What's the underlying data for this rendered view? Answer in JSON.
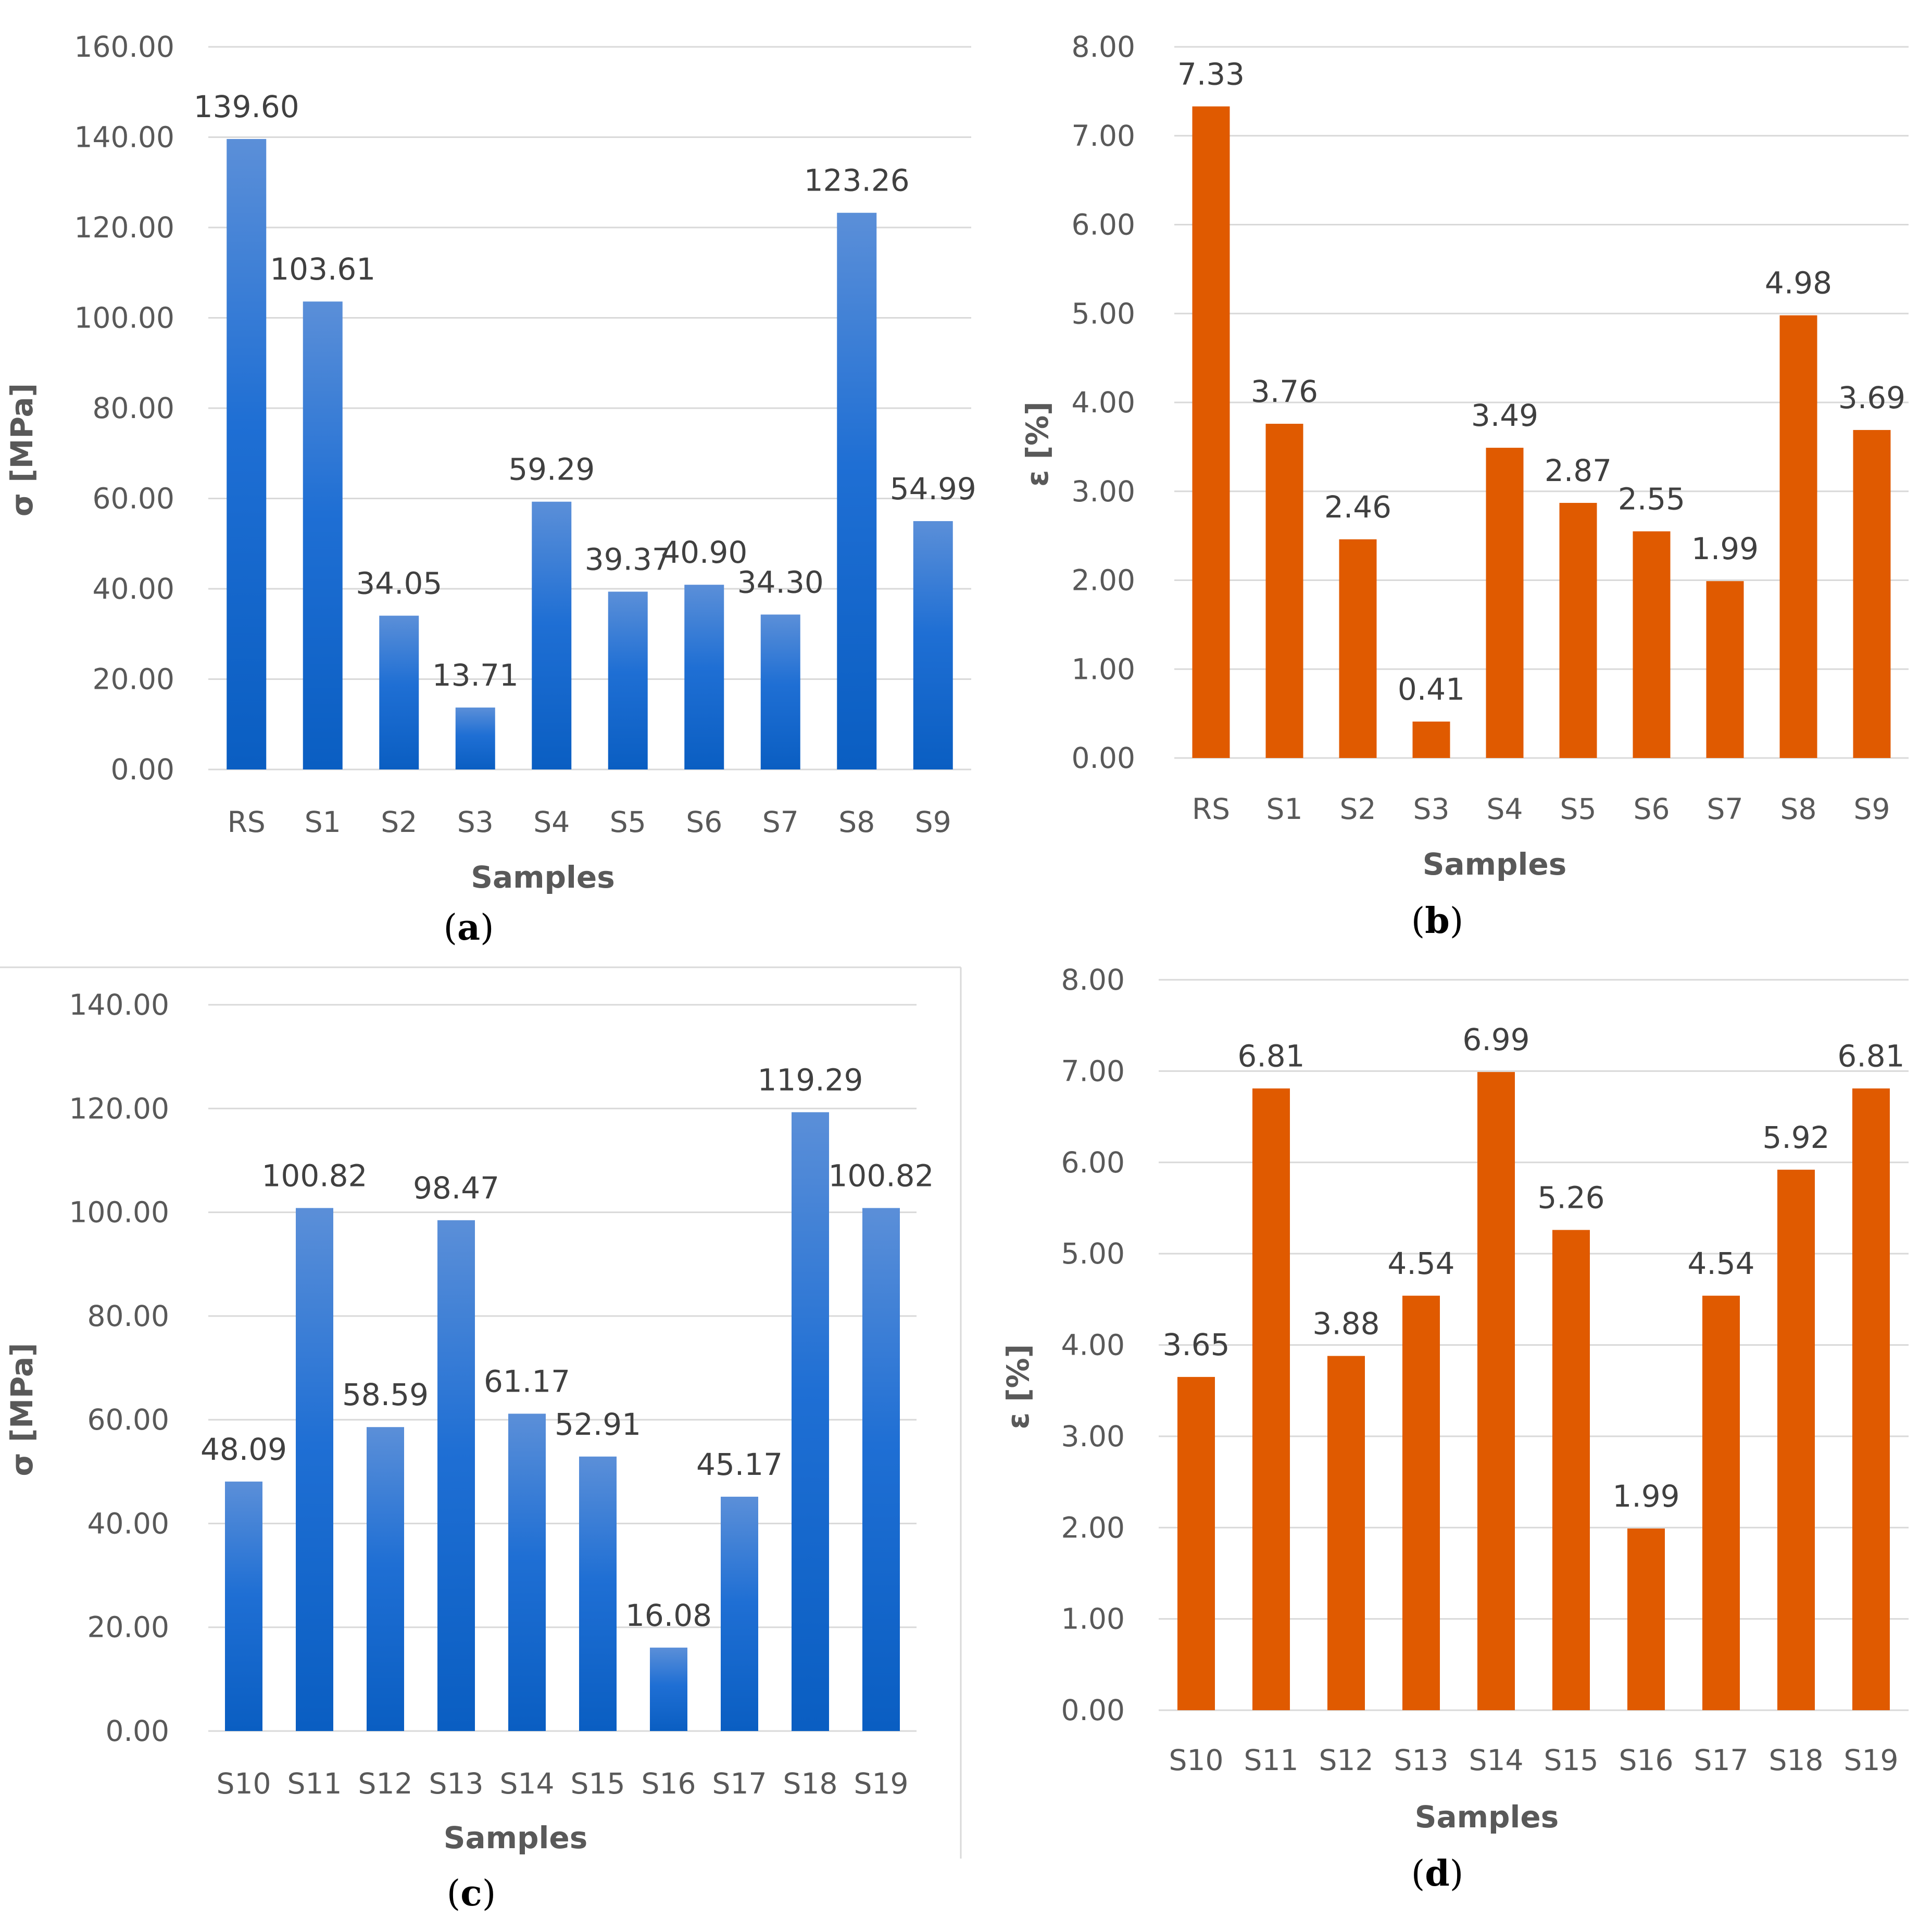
{
  "colors": {
    "blue_light": "#5b8fd8",
    "blue_mid": "#1f6fd4",
    "blue_dark": "#0a5ec2",
    "orange": "#e05a00",
    "grid": "#d9d9d9",
    "text": "#595959"
  },
  "chart_data": [
    {
      "id": "a",
      "type": "bar",
      "panel_label": "a",
      "title": "",
      "xlabel": "Samples",
      "ylabel": "σ [MPa]",
      "ylim": [
        0,
        160
      ],
      "yticks": [
        "0.00",
        "20.00",
        "40.00",
        "60.00",
        "80.00",
        "100.00",
        "120.00",
        "140.00",
        "160.00"
      ],
      "categories": [
        "RS",
        "S1",
        "S2",
        "S3",
        "S4",
        "S5",
        "S6",
        "S7",
        "S8",
        "S9"
      ],
      "values": [
        139.6,
        103.61,
        34.05,
        13.71,
        59.29,
        39.37,
        40.9,
        34.3,
        123.26,
        54.99
      ],
      "value_labels": [
        "139.60",
        "103.61",
        "34.05",
        "13.71",
        "59.29",
        "39.37",
        "40.90",
        "34.30",
        "123.26",
        "54.99"
      ],
      "color": "blue",
      "grid": true
    },
    {
      "id": "b",
      "type": "bar",
      "panel_label": "b",
      "title": "",
      "xlabel": "Samples",
      "ylabel": "ε [%]",
      "ylim": [
        0,
        8
      ],
      "yticks": [
        "0.00",
        "1.00",
        "2.00",
        "3.00",
        "4.00",
        "5.00",
        "6.00",
        "7.00",
        "8.00"
      ],
      "categories": [
        "RS",
        "S1",
        "S2",
        "S3",
        "S4",
        "S5",
        "S6",
        "S7",
        "S8",
        "S9"
      ],
      "values": [
        7.33,
        3.76,
        2.46,
        0.41,
        3.49,
        2.87,
        2.55,
        1.99,
        4.98,
        3.69
      ],
      "value_labels": [
        "7.33",
        "3.76",
        "2.46",
        "0.41",
        "3.49",
        "2.87",
        "2.55",
        "1.99",
        "4.98",
        "3.69"
      ],
      "color": "orange",
      "grid": true
    },
    {
      "id": "c",
      "type": "bar",
      "panel_label": "c",
      "title": "",
      "xlabel": "Samples",
      "ylabel": "σ [MPa]",
      "ylim": [
        0,
        140
      ],
      "yticks": [
        "0.00",
        "20.00",
        "40.00",
        "60.00",
        "80.00",
        "100.00",
        "120.00",
        "140.00"
      ],
      "categories": [
        "S10",
        "S11",
        "S12",
        "S13",
        "S14",
        "S15",
        "S16",
        "S17",
        "S18",
        "S19"
      ],
      "values": [
        48.09,
        100.82,
        58.59,
        98.47,
        61.17,
        52.91,
        16.08,
        45.17,
        119.29,
        100.82
      ],
      "value_labels": [
        "48.09",
        "100.82",
        "58.59",
        "98.47",
        "61.17",
        "52.91",
        "16.08",
        "45.17",
        "119.29",
        "100.82"
      ],
      "color": "blue",
      "grid": true
    },
    {
      "id": "d",
      "type": "bar",
      "panel_label": "d",
      "title": "",
      "xlabel": "Samples",
      "ylabel": "ε [%]",
      "ylim": [
        0,
        8
      ],
      "yticks": [
        "0.00",
        "1.00",
        "2.00",
        "3.00",
        "4.00",
        "5.00",
        "6.00",
        "7.00",
        "8.00"
      ],
      "categories": [
        "S10",
        "S11",
        "S12",
        "S13",
        "S14",
        "S15",
        "S16",
        "S17",
        "S18",
        "S19"
      ],
      "values": [
        3.65,
        6.81,
        3.88,
        4.54,
        6.99,
        5.26,
        1.99,
        4.54,
        5.92,
        6.81
      ],
      "value_labels": [
        "3.65",
        "6.81",
        "3.88",
        "4.54",
        "6.99",
        "5.26",
        "1.99",
        "4.54",
        "5.92",
        "6.81"
      ],
      "color": "orange",
      "grid": true
    }
  ]
}
